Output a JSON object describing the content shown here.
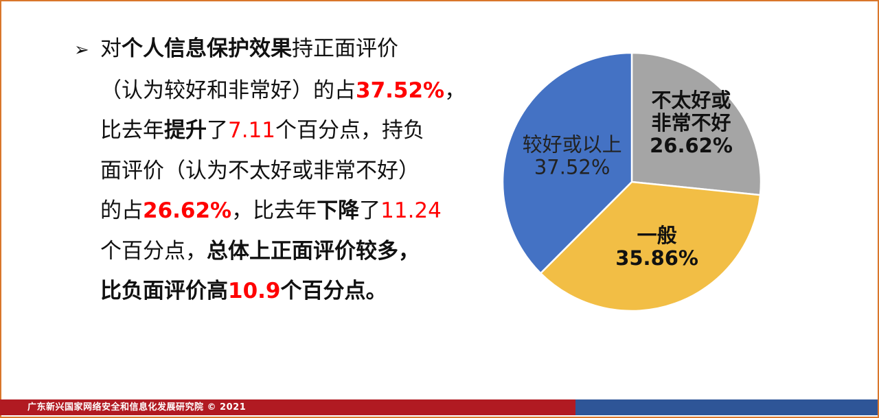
{
  "text": {
    "bullet": "➢",
    "segments": {
      "s1": "对",
      "s2": "个人信息保护效果",
      "s3": "持正面评价",
      "s4": "（认为较好和非常好）的占",
      "s5": "37.52%",
      "s6": "，",
      "s7": "比去年",
      "s8": "提升",
      "s9": "了",
      "s10": "7.11",
      "s11": "个百分点，持负",
      "s12": "面评价（认为不太好或非常不好）",
      "s13": "的占",
      "s14": "26.62%",
      "s15": "，比去年",
      "s16": "下降",
      "s17": "了",
      "s18": "11.24",
      "s19": "个百分点，",
      "s20": "总体上正面评价较多，",
      "s21": "比负面评价高",
      "s22": "10.9",
      "s23": "个百分点。"
    }
  },
  "chart_data": {
    "type": "pie",
    "title": "",
    "start_angle_deg": 0,
    "direction": "clockwise",
    "slices": [
      {
        "label_lines": [
          "不太好或",
          "非常不好"
        ],
        "value": 26.62,
        "value_label": "26.62%",
        "color": "#a5a5a5",
        "label_color": "#111111",
        "bold": true
      },
      {
        "label_lines": [
          "一般"
        ],
        "value": 35.86,
        "value_label": "35.86%",
        "color": "#f2be45",
        "label_color": "#111111",
        "bold": true
      },
      {
        "label_lines": [
          "较好或以上"
        ],
        "value": 37.52,
        "value_label": "37.52%",
        "color": "#4472c4",
        "label_color": "#222222",
        "bold": false
      }
    ]
  },
  "footer": {
    "text": "广东新兴国家网络安全和信息化发展研究院 © 2021",
    "left_color": "#b11a22",
    "right_color": "#2e5597"
  }
}
